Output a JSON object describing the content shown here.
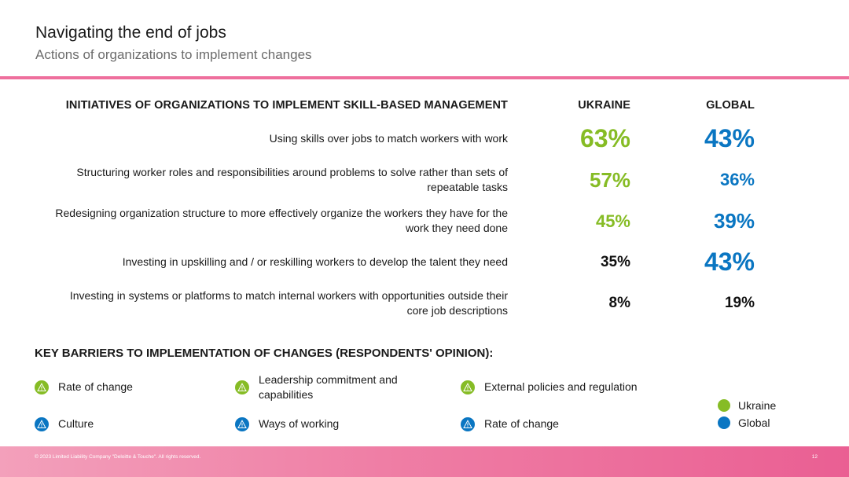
{
  "header": {
    "title": "Navigating the end of jobs",
    "subtitle": "Actions of organizations to implement changes"
  },
  "table": {
    "columns": {
      "initiatives": "INITIATIVES OF ORGANIZATIONS TO IMPLEMENT SKILL-BASED MANAGEMENT",
      "ukraine": "UKRAINE",
      "global": "GLOBAL"
    },
    "rows": [
      {
        "label_line1": "Using skills over jobs to match workers with work",
        "label_line2": "",
        "ukraine": "63%",
        "global": "43%",
        "ukraine_color": "#86bc25",
        "global_color": "#0a76c2"
      },
      {
        "label_line1": "Structuring worker roles and responsibilities around problems to solve rather than sets of",
        "label_line2": "repeatable tasks",
        "ukraine": "57%",
        "global": "36%",
        "ukraine_color": "#86bc25",
        "global_color": "#0a76c2"
      },
      {
        "label_line1": "Redesigning organization structure to more effectively organize the workers they have for the",
        "label_line2": "work they need done",
        "ukraine": "45%",
        "global": "39%",
        "ukraine_color": "#86bc25",
        "global_color": "#0a76c2"
      },
      {
        "label_line1": "Investing in upskilling and / or reskilling workers to develop the talent they need",
        "label_line2": "",
        "ukraine": "35%",
        "global": "43%",
        "ukraine_color": "#111111",
        "global_color": "#0a76c2"
      },
      {
        "label_line1": "Investing in systems or platforms to match internal workers with opportunities outside their",
        "label_line2": "core job descriptions",
        "ukraine": "8%",
        "global": "19%",
        "ukraine_color": "#111111",
        "global_color": "#111111"
      }
    ]
  },
  "barriers": {
    "title": "KEY BARRIERS TO IMPLEMENTATION OF CHANGES (RESPONDENTS' OPINION):",
    "ukraine": [
      {
        "label": "Rate of change",
        "icon": "warning-icon"
      },
      {
        "label_line1": "Leadership commitment and",
        "label_line2": "capabilities",
        "icon": "warning-icon"
      },
      {
        "label": "External policies and regulation",
        "icon": "warning-icon"
      }
    ],
    "global": [
      {
        "label": "Culture",
        "icon": "warning-icon"
      },
      {
        "label": "Ways of working",
        "icon": "warning-icon"
      },
      {
        "label": "Rate of change",
        "icon": "warning-icon"
      }
    ]
  },
  "legend": {
    "ukraine": "Ukraine",
    "global": "Global"
  },
  "colors": {
    "accent_green": "#86bc25",
    "accent_blue": "#0a76c2",
    "accent_pink": "#ee6f9d"
  },
  "footer": {
    "copyright": "© 2023 Limited Liability Company \"Deloitte & Touche\". All rights reserved.",
    "page": "12"
  }
}
